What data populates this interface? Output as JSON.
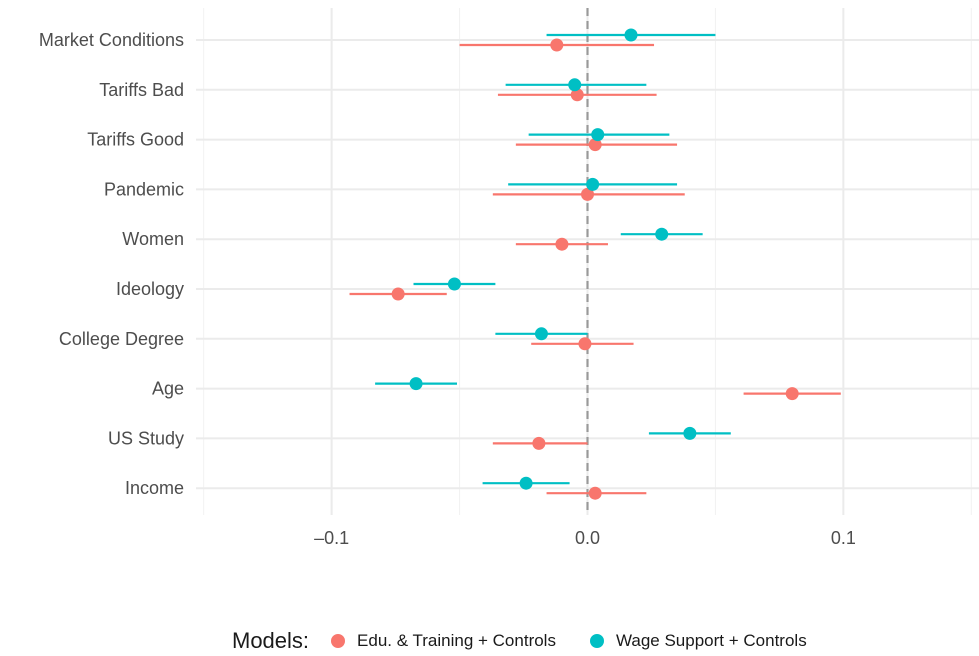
{
  "chart_data": {
    "type": "scatter",
    "subtype": "coefficient-plot",
    "title": "",
    "xlabel": "",
    "ylabel": "",
    "xlim": [
      -0.153,
      0.153
    ],
    "x_ticks": [
      -0.1,
      0.0,
      0.1
    ],
    "x_tick_labels": [
      "–0.1",
      "0.0",
      "0.1"
    ],
    "grid": true,
    "reference_line": {
      "x": 0,
      "style": "dashed",
      "color": "#999999"
    },
    "legend_position": "bottom",
    "legend_title": "Models:",
    "categories": [
      "Market Conditions",
      "Tariffs Bad",
      "Tariffs Good",
      "Pandemic",
      "Women",
      "Ideology",
      "College Degree",
      "Age",
      "US Study",
      "Income"
    ],
    "series": [
      {
        "name": "Edu. & Training + Controls",
        "color": "#F8766D",
        "estimate": [
          -0.012,
          -0.004,
          0.003,
          0.0,
          -0.01,
          -0.074,
          -0.001,
          0.08,
          -0.019,
          0.003
        ],
        "ci_low": [
          -0.05,
          -0.035,
          -0.028,
          -0.037,
          -0.028,
          -0.093,
          -0.022,
          0.061,
          -0.037,
          -0.016
        ],
        "ci_high": [
          0.026,
          0.027,
          0.035,
          0.038,
          0.008,
          -0.055,
          0.018,
          0.099,
          0.0,
          0.023
        ]
      },
      {
        "name": "Wage Support + Controls",
        "color": "#00BFC4",
        "estimate": [
          0.017,
          -0.005,
          0.004,
          0.002,
          0.029,
          -0.052,
          -0.018,
          -0.067,
          0.04,
          -0.024
        ],
        "ci_low": [
          -0.016,
          -0.032,
          -0.023,
          -0.031,
          0.013,
          -0.068,
          -0.036,
          -0.083,
          0.024,
          -0.041
        ],
        "ci_high": [
          0.05,
          0.023,
          0.032,
          0.035,
          0.045,
          -0.036,
          0.0,
          -0.051,
          0.056,
          -0.007
        ]
      }
    ]
  }
}
